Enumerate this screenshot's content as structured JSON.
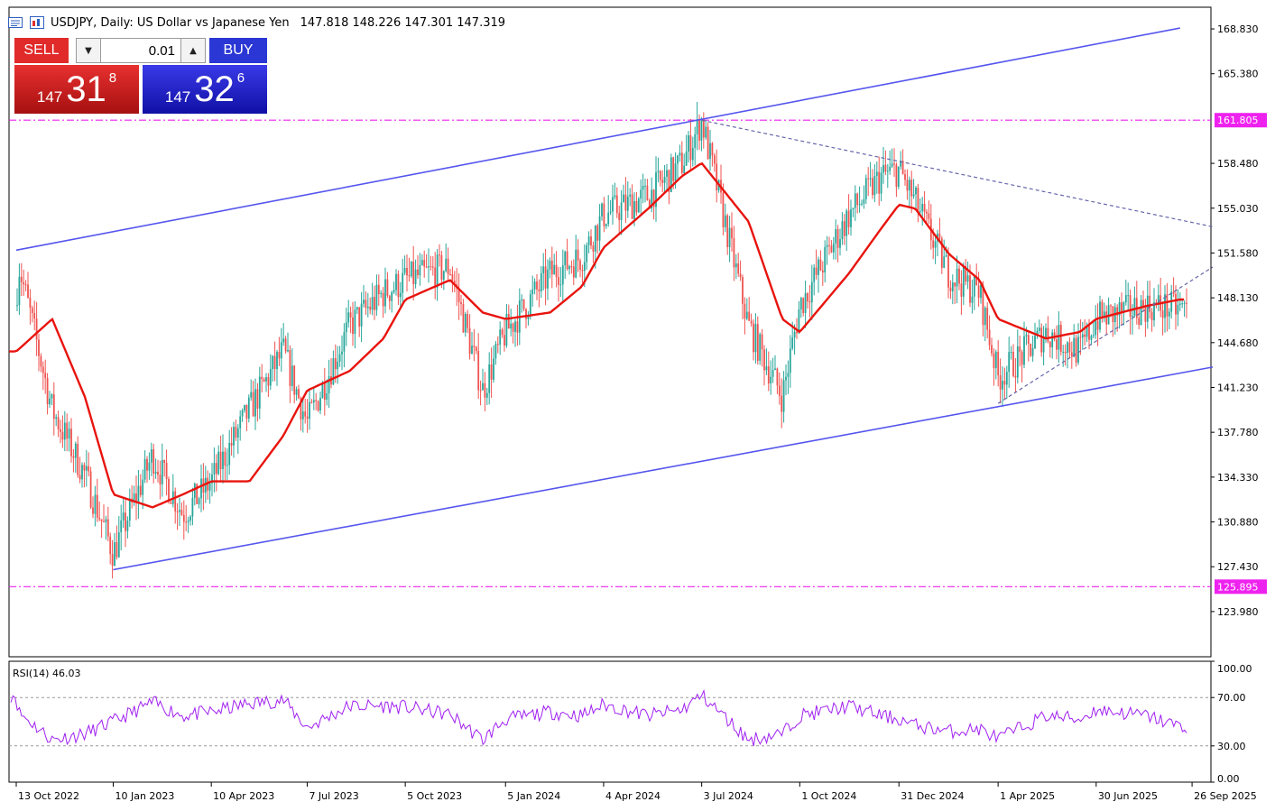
{
  "header": {
    "symbol_title": "USDJPY, Daily:  US Dollar vs Japanese Yen",
    "ohlc": "147.818 148.226 147.301 147.319"
  },
  "trade_panel": {
    "sell_label": "SELL",
    "buy_label": "BUY",
    "lot_size": "0.01",
    "sell_quote": {
      "prefix": "147",
      "big": "31",
      "sup": "8"
    },
    "buy_quote": {
      "prefix": "147",
      "big": "32",
      "sup": "6"
    }
  },
  "colors": {
    "bull_candle": "#26a69a",
    "bear_candle": "#ef5350",
    "moving_average": "#e8140e",
    "channel_lines": "#5555ee",
    "level_lines": "#ee22ee",
    "dashed_lines": "#6666aa",
    "rsi_line": "#a020f0",
    "sell": "#e12a2a",
    "buy": "#2a37d4"
  },
  "chart_data": {
    "type": "candlestick",
    "price_axis": {
      "ticks": [
        "168.830",
        "165.380",
        "161.805",
        "158.480",
        "155.030",
        "151.580",
        "148.130",
        "144.680",
        "141.230",
        "137.780",
        "134.330",
        "130.880",
        "127.430",
        "125.895",
        "123.980"
      ],
      "ylim": [
        120.5,
        170.5
      ]
    },
    "time_axis": {
      "ticks": [
        "13 Oct 2022",
        "10 Jan 2023",
        "10 Apr 2023",
        "7 Jul 2023",
        "5 Oct 2023",
        "5 Jan 2024",
        "4 Apr 2024",
        "3 Jul 2024",
        "1 Oct 2024",
        "31 Dec 2024",
        "1 Apr 2025",
        "30 Jun 2025",
        "26 Sep 2025"
      ]
    },
    "levels": [
      {
        "label": "161.805",
        "value": 161.805
      },
      {
        "label": "125.895",
        "value": 125.895
      }
    ],
    "price_path": [
      [
        "13 Oct 2022",
        147.5
      ],
      [
        "Oct 2022",
        150.8
      ],
      [
        "Nov 2022",
        139.5
      ],
      [
        "Dec 2022",
        134.5
      ],
      [
        "10 Jan 2023",
        128.5
      ],
      [
        "Feb 2023",
        136.0
      ],
      [
        "Mar 2023",
        131.5
      ],
      [
        "10 Apr 2023",
        134.0
      ],
      [
        "May 2023",
        139.5
      ],
      [
        "Jun 2023",
        144.0
      ],
      [
        "7 Jul 2023",
        138.5
      ],
      [
        "Aug 2023",
        146.0
      ],
      [
        "Sep 2023",
        148.5
      ],
      [
        "5 Oct 2023",
        149.5
      ],
      [
        "Nov 2023",
        150.5
      ],
      [
        "Dec 2023",
        141.0
      ],
      [
        "5 Jan 2024",
        145.5
      ],
      [
        "Feb 2024",
        150.0
      ],
      [
        "Mar 2024",
        151.3
      ],
      [
        "4 Apr 2024",
        154.5
      ],
      [
        "May 2024",
        156.0
      ],
      [
        "Jun 2024",
        158.5
      ],
      [
        "3 Jul 2024",
        161.8
      ],
      [
        "Aug 2024",
        146.0
      ],
      [
        "Sep 2024",
        140.5
      ],
      [
        "1 Oct 2024",
        147.5
      ],
      [
        "Nov 2024",
        154.5
      ],
      [
        "Dec 2024",
        157.5
      ],
      [
        "31 Dec 2024",
        158.0
      ],
      [
        "Jan 2025",
        155.5
      ],
      [
        "Feb 2025",
        150.0
      ],
      [
        "Mar 2025",
        148.5
      ],
      [
        "1 Apr 2025",
        142.0
      ],
      [
        "May 2025",
        145.5
      ],
      [
        "Jun 2025",
        144.0
      ],
      [
        "30 Jun 2025",
        146.5
      ],
      [
        "Aug 2025",
        147.5
      ],
      [
        "Sep 2025",
        147.3
      ]
    ],
    "moving_average": [
      [
        "13 Oct 2022",
        144.0
      ],
      [
        "Nov 2022",
        146.5
      ],
      [
        "Dec 2022",
        140.5
      ],
      [
        "10 Jan 2023",
        133.0
      ],
      [
        "Feb 2023",
        132.0
      ],
      [
        "Mar 2023",
        133.0
      ],
      [
        "10 Apr 2023",
        134.0
      ],
      [
        "May 2023",
        134.0
      ],
      [
        "Jun 2023",
        137.5
      ],
      [
        "7 Jul 2023",
        141.0
      ],
      [
        "Aug 2023",
        142.5
      ],
      [
        "Sep 2023",
        145.0
      ],
      [
        "5 Oct 2023",
        148.0
      ],
      [
        "Nov 2023",
        149.5
      ],
      [
        "Dec 2023",
        147.0
      ],
      [
        "5 Jan 2024",
        146.5
      ],
      [
        "Feb 2024",
        147.0
      ],
      [
        "Mar 2024",
        149.0
      ],
      [
        "4 Apr 2024",
        152.0
      ],
      [
        "May 2024",
        155.0
      ],
      [
        "Jun 2024",
        157.5
      ],
      [
        "3 Jul 2024",
        158.5
      ],
      [
        "Aug 2024",
        154.0
      ],
      [
        "Sep 2024",
        146.5
      ],
      [
        "1 Oct 2024",
        145.5
      ],
      [
        "Nov 2024",
        150.0
      ],
      [
        "Dec 2024",
        153.5
      ],
      [
        "31 Dec 2024",
        155.3
      ],
      [
        "Jan 2025",
        155.0
      ],
      [
        "Feb 2025",
        151.5
      ],
      [
        "Mar 2025",
        149.5
      ],
      [
        "1 Apr 2025",
        146.5
      ],
      [
        "May 2025",
        145.0
      ],
      [
        "Jun 2025",
        145.5
      ],
      [
        "30 Jun 2025",
        146.5
      ],
      [
        "Aug 2025",
        147.5
      ],
      [
        "Sep 2025",
        148.0
      ]
    ],
    "trend_lines": [
      {
        "name": "channel-upper",
        "style": "solid",
        "from": [
          "13 Oct 2022",
          151.8
        ],
        "to": [
          "Sep 2025",
          168.9
        ]
      },
      {
        "name": "channel-lower",
        "style": "solid",
        "from": [
          "10 Jan 2023",
          127.2
        ],
        "to": [
          "Oct 2025",
          142.8
        ]
      },
      {
        "name": "descending-dashed",
        "style": "dashed",
        "from": [
          "3 Jul 2024",
          161.8
        ],
        "to": [
          "Oct 2025",
          153.6
        ]
      },
      {
        "name": "ascending-dashed",
        "style": "dashed",
        "from": [
          "1 Apr 2025",
          140.0
        ],
        "to": [
          "Oct 2025",
          150.5
        ]
      }
    ],
    "rsi": {
      "label": "RSI(14) 46.03",
      "ticks": [
        "100.00",
        "70.00",
        "30.00",
        "0.00"
      ],
      "levels": [
        70,
        30
      ],
      "ylim": [
        0,
        100
      ],
      "path": [
        [
          "13 Oct 2022",
          72
        ],
        [
          "Oct 2022",
          58
        ],
        [
          "Nov 2022",
          35
        ],
        [
          "Dec 2022",
          40
        ],
        [
          "10 Jan 2023",
          50
        ],
        [
          "Feb 2023",
          66
        ],
        [
          "Mar 2023",
          55
        ],
        [
          "10 Apr 2023",
          58
        ],
        [
          "May 2023",
          65
        ],
        [
          "Jun 2023",
          68
        ],
        [
          "7 Jul 2023",
          45
        ],
        [
          "Aug 2023",
          63
        ],
        [
          "Sep 2023",
          63
        ],
        [
          "5 Oct 2023",
          62
        ],
        [
          "Nov 2023",
          56
        ],
        [
          "Dec 2023",
          35
        ],
        [
          "5 Jan 2024",
          52
        ],
        [
          "Feb 2024",
          58
        ],
        [
          "Mar 2024",
          55
        ],
        [
          "4 Apr 2024",
          64
        ],
        [
          "May 2024",
          55
        ],
        [
          "Jun 2024",
          60
        ],
        [
          "3 Jul 2024",
          72
        ],
        [
          "Aug 2024",
          35
        ],
        [
          "Sep 2024",
          40
        ],
        [
          "1 Oct 2024",
          55
        ],
        [
          "Nov 2024",
          63
        ],
        [
          "Dec 2024",
          55
        ],
        [
          "31 Dec 2024",
          52
        ],
        [
          "Jan 2025",
          47
        ],
        [
          "Feb 2025",
          42
        ],
        [
          "Mar 2025",
          44
        ],
        [
          "1 Apr 2025",
          36
        ],
        [
          "May 2025",
          55
        ],
        [
          "Jun 2025",
          52
        ],
        [
          "30 Jun 2025",
          60
        ],
        [
          "Aug 2025",
          55
        ],
        [
          "Sep 2025",
          46
        ]
      ]
    }
  }
}
